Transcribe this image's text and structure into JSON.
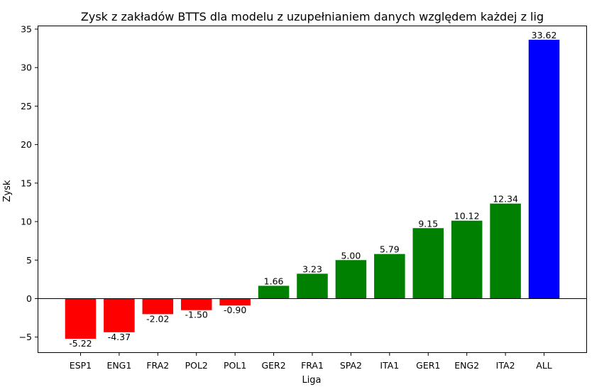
{
  "chart_data": {
    "type": "bar",
    "title": "Zysk z zakładów BTTS dla modelu z uzupełnianiem danych względem każdej z lig",
    "xlabel": "Liga",
    "ylabel": "Zysk",
    "categories": [
      "ESP1",
      "ENG1",
      "FRA2",
      "POL2",
      "POL1",
      "GER2",
      "FRA1",
      "SPA2",
      "ITA1",
      "GER1",
      "ENG2",
      "ITA2",
      "ALL"
    ],
    "values": [
      -5.22,
      -4.37,
      -2.02,
      -1.5,
      -0.9,
      1.66,
      3.23,
      5.0,
      5.79,
      9.15,
      10.12,
      12.34,
      33.62
    ],
    "value_labels": [
      "-5.22",
      "-4.37",
      "-2.02",
      "-1.50",
      "-0.90",
      "1.66",
      "3.23",
      "5.00",
      "5.79",
      "9.15",
      "10.12",
      "12.34",
      "33.62"
    ],
    "colors": [
      "#ff0000",
      "#ff0000",
      "#ff0000",
      "#ff0000",
      "#ff0000",
      "#008000",
      "#008000",
      "#008000",
      "#008000",
      "#008000",
      "#008000",
      "#008000",
      "#0000ff"
    ],
    "ylim": [
      -7.06,
      35.46
    ],
    "yticks": [
      -5,
      0,
      5,
      10,
      15,
      20,
      25,
      30,
      35
    ],
    "ytick_labels": [
      "−5",
      "0",
      "5",
      "10",
      "15",
      "20",
      "25",
      "30",
      "35"
    ],
    "zero_line": true,
    "grid": false,
    "legend": "none"
  }
}
